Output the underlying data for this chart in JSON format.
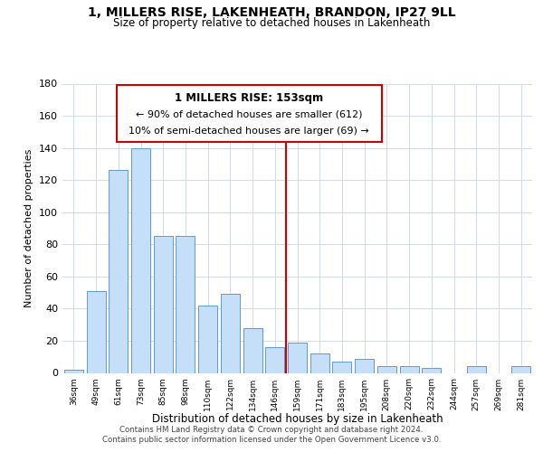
{
  "title": "1, MILLERS RISE, LAKENHEATH, BRANDON, IP27 9LL",
  "subtitle": "Size of property relative to detached houses in Lakenheath",
  "xlabel": "Distribution of detached houses by size in Lakenheath",
  "ylabel": "Number of detached properties",
  "categories": [
    "36sqm",
    "49sqm",
    "61sqm",
    "73sqm",
    "85sqm",
    "98sqm",
    "110sqm",
    "122sqm",
    "134sqm",
    "146sqm",
    "159sqm",
    "171sqm",
    "183sqm",
    "195sqm",
    "208sqm",
    "220sqm",
    "232sqm",
    "244sqm",
    "257sqm",
    "269sqm",
    "281sqm"
  ],
  "values": [
    2,
    51,
    126,
    140,
    85,
    85,
    42,
    49,
    28,
    16,
    19,
    12,
    7,
    9,
    4,
    4,
    3,
    0,
    4,
    0,
    4
  ],
  "bar_color": "#c5dff8",
  "bar_edge_color": "#5b9bd5",
  "vline_x": 9.5,
  "vline_color": "#cc0000",
  "annotation_title": "1 MILLERS RISE: 153sqm",
  "annotation_line1": "← 90% of detached houses are smaller (612)",
  "annotation_line2": "10% of semi-detached houses are larger (69) →",
  "annotation_box_color": "#ffffff",
  "annotation_box_edge": "#cc0000",
  "ylim": [
    0,
    180
  ],
  "yticks": [
    0,
    20,
    40,
    60,
    80,
    100,
    120,
    140,
    160,
    180
  ],
  "footer1": "Contains HM Land Registry data © Crown copyright and database right 2024.",
  "footer2": "Contains public sector information licensed under the Open Government Licence v3.0.",
  "background_color": "#ffffff",
  "grid_color": "#d0dce8"
}
